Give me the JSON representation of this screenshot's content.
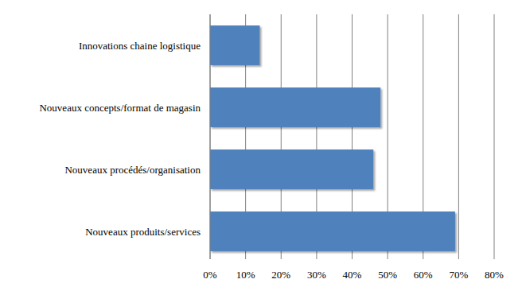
{
  "chart_data": {
    "type": "bar",
    "orientation": "horizontal",
    "categories": [
      "Innovations chaine logistique",
      "Nouveaux concepts/format de magasin",
      "Nouveaux procédés/organisation",
      "Nouveaux produits/services"
    ],
    "values": [
      14,
      48,
      46,
      69
    ],
    "color": "#4f81bd",
    "xlim": [
      0,
      80
    ],
    "xticks": [
      {
        "value": 0,
        "label": "0%"
      },
      {
        "value": 10,
        "label": "10%"
      },
      {
        "value": 20,
        "label": "20%"
      },
      {
        "value": 30,
        "label": "30%"
      },
      {
        "value": 40,
        "label": "40%"
      },
      {
        "value": 50,
        "label": "50%"
      },
      {
        "value": 60,
        "label": "60%"
      },
      {
        "value": 70,
        "label": "70%"
      },
      {
        "value": 80,
        "label": "80%"
      }
    ],
    "grid": true
  }
}
